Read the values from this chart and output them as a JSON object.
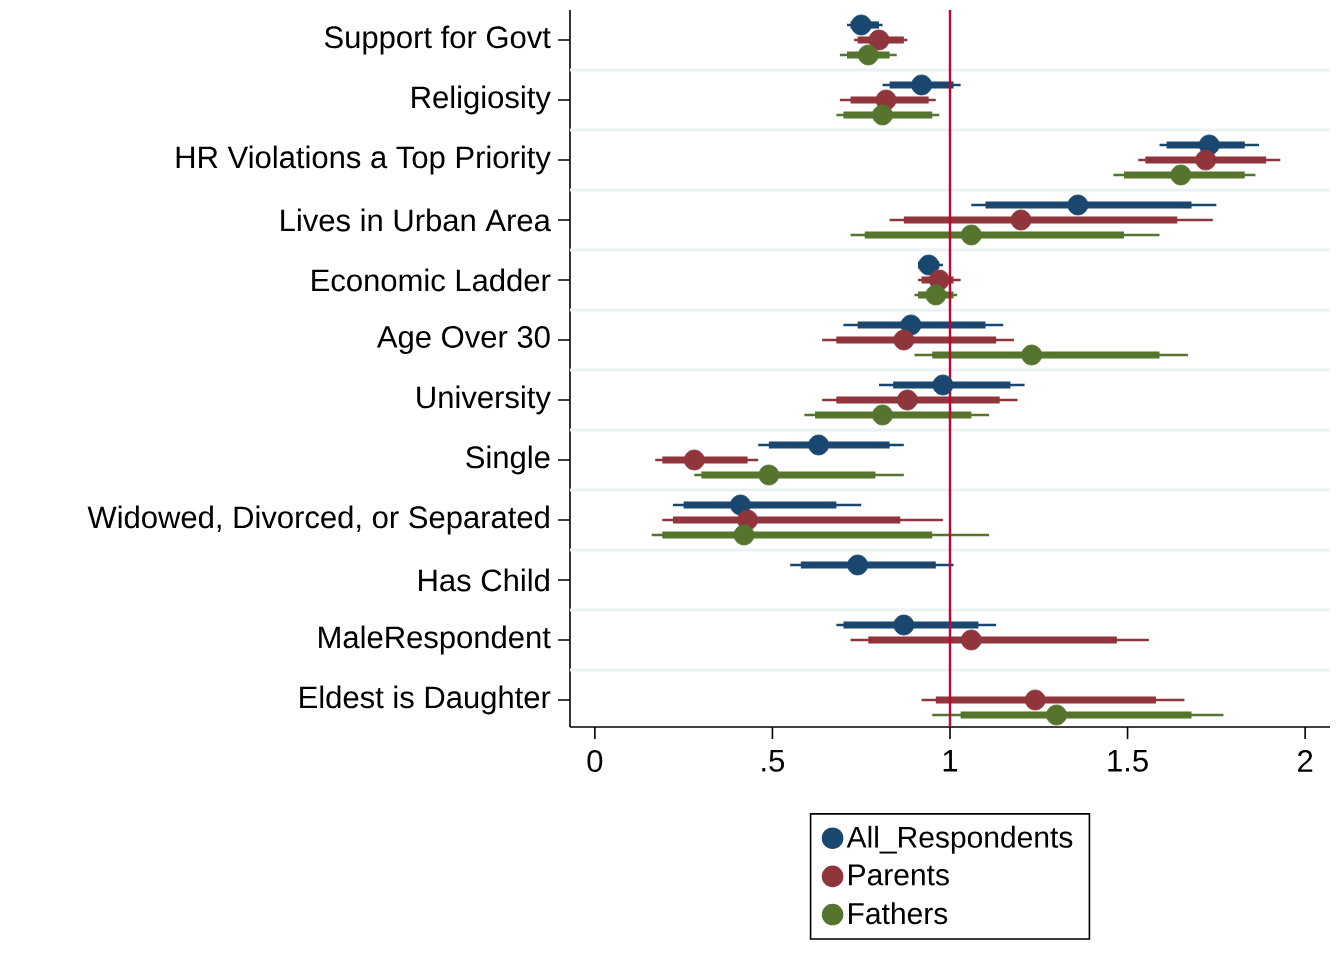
{
  "chart_data": {
    "type": "box",
    "orientation": "horizontal",
    "categories": [
      "Support for Govt",
      "Religiosity",
      "HR Violations a Top Priority",
      "Lives in Urban Area",
      "Economic Ladder",
      "Age Over 30",
      "University",
      "Single",
      "Widowed, Divorced, or Separated",
      "Has Child",
      "MaleRespondent",
      "Eldest is Daughter"
    ],
    "series": [
      {
        "name": "All_Respondents",
        "color": "#1a476f",
        "boxes": [
          {
            "low": 0.71,
            "q1": 0.72,
            "median": 0.75,
            "q3": 0.8,
            "high": 0.81
          },
          {
            "low": 0.81,
            "q1": 0.83,
            "median": 0.92,
            "q3": 1.01,
            "high": 1.03
          },
          {
            "low": 1.59,
            "q1": 1.61,
            "median": 1.73,
            "q3": 1.83,
            "high": 1.87
          },
          {
            "low": 1.06,
            "q1": 1.1,
            "median": 1.36,
            "q3": 1.68,
            "high": 1.75
          },
          {
            "low": 0.91,
            "q1": 0.91,
            "median": 0.94,
            "q3": 0.97,
            "high": 0.98
          },
          {
            "low": 0.7,
            "q1": 0.74,
            "median": 0.89,
            "q3": 1.1,
            "high": 1.15
          },
          {
            "low": 0.8,
            "q1": 0.84,
            "median": 0.98,
            "q3": 1.17,
            "high": 1.21
          },
          {
            "low": 0.46,
            "q1": 0.49,
            "median": 0.63,
            "q3": 0.83,
            "high": 0.87
          },
          {
            "low": 0.22,
            "q1": 0.25,
            "median": 0.41,
            "q3": 0.68,
            "high": 0.75
          },
          {
            "low": 0.55,
            "q1": 0.58,
            "median": 0.74,
            "q3": 0.96,
            "high": 1.01
          },
          {
            "low": 0.68,
            "q1": 0.7,
            "median": 0.87,
            "q3": 1.08,
            "high": 1.13
          },
          null
        ]
      },
      {
        "name": "Parents",
        "color": "#90353b",
        "boxes": [
          {
            "low": 0.73,
            "q1": 0.74,
            "median": 0.8,
            "q3": 0.87,
            "high": 0.88
          },
          {
            "low": 0.69,
            "q1": 0.72,
            "median": 0.82,
            "q3": 0.94,
            "high": 0.96
          },
          {
            "low": 1.53,
            "q1": 1.55,
            "median": 1.72,
            "q3": 1.89,
            "high": 1.93
          },
          {
            "low": 0.83,
            "q1": 0.87,
            "median": 1.2,
            "q3": 1.64,
            "high": 1.74
          },
          {
            "low": 0.91,
            "q1": 0.92,
            "median": 0.97,
            "q3": 1.01,
            "high": 1.03
          },
          {
            "low": 0.64,
            "q1": 0.68,
            "median": 0.87,
            "q3": 1.13,
            "high": 1.18
          },
          {
            "low": 0.64,
            "q1": 0.68,
            "median": 0.88,
            "q3": 1.14,
            "high": 1.19
          },
          {
            "low": 0.17,
            "q1": 0.19,
            "median": 0.28,
            "q3": 0.43,
            "high": 0.46
          },
          {
            "low": 0.19,
            "q1": 0.22,
            "median": 0.43,
            "q3": 0.86,
            "high": 0.98
          },
          null,
          {
            "low": 0.72,
            "q1": 0.77,
            "median": 1.06,
            "q3": 1.47,
            "high": 1.56
          },
          {
            "low": 0.92,
            "q1": 0.96,
            "median": 1.24,
            "q3": 1.58,
            "high": 1.66
          }
        ]
      },
      {
        "name": "Fathers",
        "color": "#55752f",
        "boxes": [
          {
            "low": 0.69,
            "q1": 0.71,
            "median": 0.77,
            "q3": 0.83,
            "high": 0.85
          },
          {
            "low": 0.68,
            "q1": 0.7,
            "median": 0.81,
            "q3": 0.95,
            "high": 0.97
          },
          {
            "low": 1.46,
            "q1": 1.49,
            "median": 1.65,
            "q3": 1.83,
            "high": 1.86
          },
          {
            "low": 0.72,
            "q1": 0.76,
            "median": 1.06,
            "q3": 1.49,
            "high": 1.59
          },
          {
            "low": 0.9,
            "q1": 0.91,
            "median": 0.96,
            "q3": 1.01,
            "high": 1.02
          },
          {
            "low": 0.9,
            "q1": 0.95,
            "median": 1.23,
            "q3": 1.59,
            "high": 1.67
          },
          {
            "low": 0.59,
            "q1": 0.62,
            "median": 0.81,
            "q3": 1.06,
            "high": 1.11
          },
          {
            "low": 0.28,
            "q1": 0.3,
            "median": 0.49,
            "q3": 0.79,
            "high": 0.87
          },
          {
            "low": 0.16,
            "q1": 0.19,
            "median": 0.42,
            "q3": 0.95,
            "high": 1.11
          },
          null,
          null,
          {
            "low": 0.95,
            "q1": 1.03,
            "median": 1.3,
            "q3": 1.68,
            "high": 1.77
          }
        ]
      }
    ],
    "xlim": [
      -0.07,
      2.07
    ],
    "xticks": [
      0,
      {
        "value": 0.5,
        "label": ".5"
      },
      1,
      {
        "value": 1.5,
        "label": "1.5"
      },
      2
    ],
    "ref_lines": [
      {
        "axis": "x",
        "value": 1,
        "color": "#c10534"
      }
    ],
    "grid": "y",
    "legend": "bottom",
    "marker": "circle"
  }
}
